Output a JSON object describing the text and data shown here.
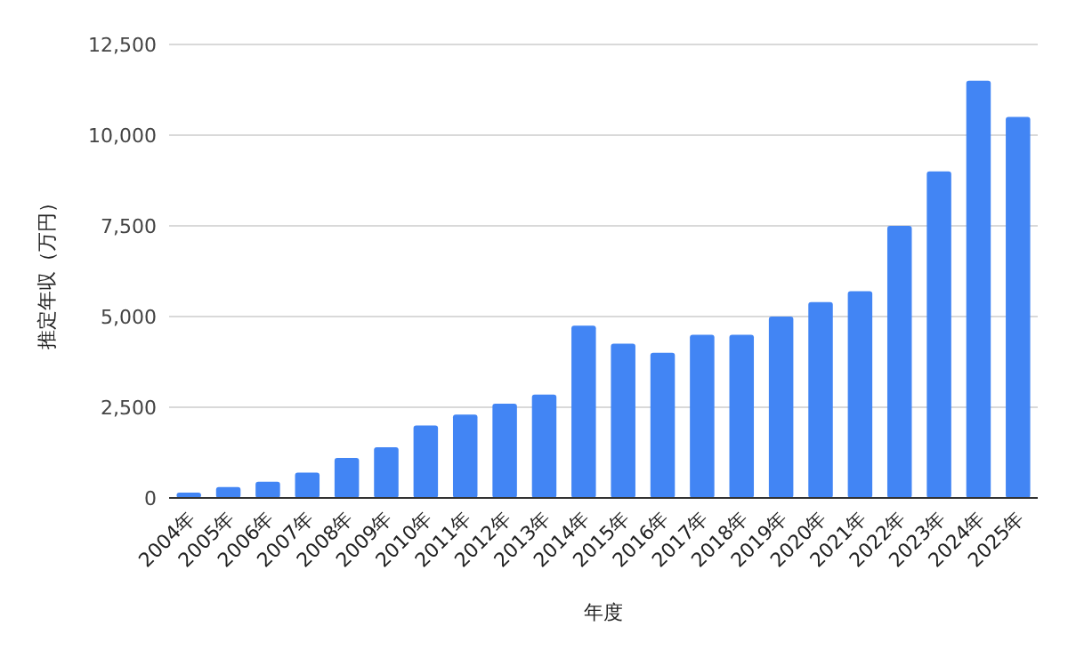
{
  "chart_data": {
    "type": "bar",
    "xlabel": "年度",
    "ylabel": "推定年収（万円）",
    "color": "#4285f4",
    "grid": "y",
    "categories": [
      "2004年",
      "2005年",
      "2006年",
      "2007年",
      "2008年",
      "2009年",
      "2010年",
      "2011年",
      "2012年",
      "2013年",
      "2014年",
      "2015年",
      "2016年",
      "2017年",
      "2018年",
      "2019年",
      "2020年",
      "2021年",
      "2022年",
      "2023年",
      "2024年",
      "2025年"
    ],
    "values": [
      150,
      300,
      450,
      700,
      1100,
      1400,
      2000,
      2300,
      2600,
      2850,
      4750,
      4250,
      4000,
      4500,
      4500,
      5000,
      5400,
      5700,
      7500,
      9000,
      11500,
      10500
    ],
    "ylim": [
      0,
      12500
    ],
    "yticks": [
      0,
      {
        "value": 2500,
        "label": "2,500"
      },
      {
        "value": 5000,
        "label": "5,000"
      },
      {
        "value": 7500,
        "label": "7,500"
      },
      {
        "value": 10000,
        "label": "10,000"
      },
      {
        "value": 12500,
        "label": "12,500"
      }
    ]
  }
}
